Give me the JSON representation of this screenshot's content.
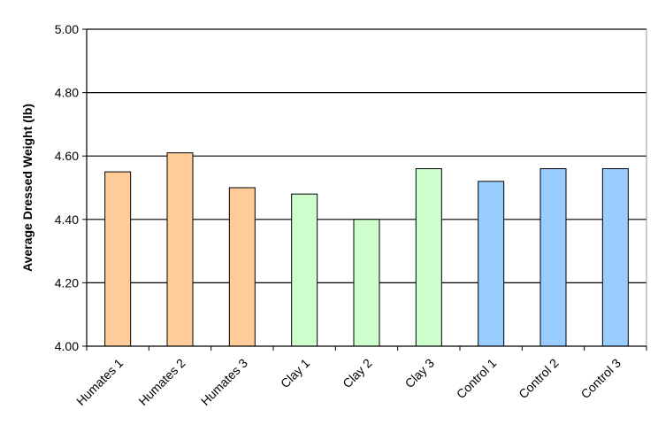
{
  "chart_data": {
    "type": "bar",
    "title": "",
    "xlabel": "",
    "ylabel": "Average Dressed Weight (lb)",
    "ylim": [
      4.0,
      5.0
    ],
    "yticks": [
      "4.00",
      "4.20",
      "4.40",
      "4.60",
      "4.80",
      "5.00"
    ],
    "grid": true,
    "categories": [
      "Humates 1",
      "Humates 2",
      "Humates 3",
      "Clay 1",
      "Clay 2",
      "Clay 3",
      "Control 1",
      "Control 2",
      "Control 3"
    ],
    "values": [
      4.55,
      4.61,
      4.5,
      4.48,
      4.4,
      4.56,
      4.52,
      4.56,
      4.56
    ],
    "colors": [
      "#FFCC99",
      "#FFCC99",
      "#FFCC99",
      "#CCFFCC",
      "#CCFFCC",
      "#CCFFCC",
      "#99CCFF",
      "#99CCFF",
      "#99CCFF"
    ]
  }
}
